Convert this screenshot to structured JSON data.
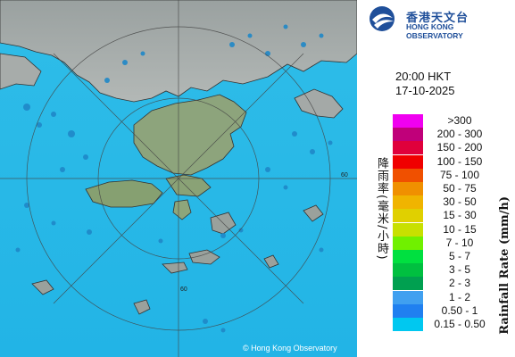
{
  "header": {
    "logo_chinese": "香港天文台",
    "logo_english": "HONG KONG OBSERVATORY"
  },
  "timestamp": {
    "time": "20:00 HKT",
    "date": "17-10-2025"
  },
  "legend": {
    "title_english": "Rainfall Rate (mm/h)",
    "title_chinese": "降雨率(毫米/小時)",
    "bins": [
      {
        "label": ">300",
        "color": "#f000f0"
      },
      {
        "label": "200 - 300",
        "color": "#c0007a"
      },
      {
        "label": "150 - 200",
        "color": "#e0003c"
      },
      {
        "label": "100 - 150",
        "color": "#f00000"
      },
      {
        "label": "75 - 100",
        "color": "#f05000"
      },
      {
        "label": "50 - 75",
        "color": "#f09000"
      },
      {
        "label": "30 - 50",
        "color": "#f0b400"
      },
      {
        "label": "15 - 30",
        "color": "#e0d000"
      },
      {
        "label": "10 - 15",
        "color": "#c8e000"
      },
      {
        "label": "7 - 10",
        "color": "#70f000"
      },
      {
        "label": "5 - 7",
        "color": "#00e040"
      },
      {
        "label": "3 - 5",
        "color": "#00c040"
      },
      {
        "label": "2 - 3",
        "color": "#00a050"
      },
      {
        "label": "1 - 2",
        "color": "#40a0f0"
      },
      {
        "label": "0.50 - 1",
        "color": "#2080f0"
      },
      {
        "label": "0.15 - 0.50",
        "color": "#00c8f0"
      }
    ]
  },
  "map": {
    "range_ring_label": "60",
    "copyright": "© Hong Kong Observatory",
    "sea_color": "#28b8ea",
    "rain_color": "#1f88c8"
  }
}
